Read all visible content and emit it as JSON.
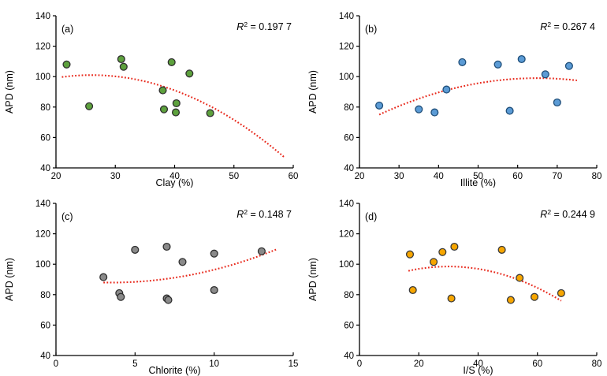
{
  "figure": {
    "background": "#ffffff",
    "axis_color": "#000000",
    "text_color": "#000000",
    "trend_color": "#E8291C"
  },
  "chart_data": [
    {
      "id": "a",
      "type": "scatter",
      "panel_label": "(a)",
      "r2_prefix": "R",
      "r2_exponent": "2",
      "r2_equals": " = ",
      "r2_value": "0.197 7",
      "xlabel": "Clay (%)",
      "ylabel": "APD (nm)",
      "xlim": [
        20,
        60
      ],
      "xticks": [
        20,
        30,
        40,
        50,
        60
      ],
      "ylim": [
        40,
        140
      ],
      "yticks": [
        40,
        60,
        80,
        100,
        120,
        140
      ],
      "grid": false,
      "marker": {
        "fill": "#5DA13D",
        "stroke": "#2F2F2F"
      },
      "points": [
        [
          21.8,
          108
        ],
        [
          25.6,
          80.5
        ],
        [
          31,
          111.5
        ],
        [
          31.4,
          106.5
        ],
        [
          38,
          91
        ],
        [
          38.2,
          78.5
        ],
        [
          39.5,
          109.5
        ],
        [
          40.3,
          82.5
        ],
        [
          40.2,
          76.5
        ],
        [
          42.5,
          102
        ],
        [
          46,
          76
        ]
      ],
      "trend": {
        "style": "dotted",
        "coeffs": [
          -0.0511,
          2.657,
          66.46
        ],
        "xrange": [
          21,
          58.5
        ]
      }
    },
    {
      "id": "b",
      "type": "scatter",
      "panel_label": "(b)",
      "r2_prefix": "R",
      "r2_exponent": "2",
      "r2_equals": " = ",
      "r2_value": "0.267 4",
      "xlabel": "Illite (%)",
      "ylabel": "APD (nm)",
      "xlim": [
        20,
        80
      ],
      "xticks": [
        20,
        30,
        40,
        50,
        60,
        70,
        80
      ],
      "ylim": [
        40,
        140
      ],
      "yticks": [
        40,
        60,
        80,
        100,
        120,
        140
      ],
      "grid": false,
      "marker": {
        "fill": "#5B9BD5",
        "stroke": "#1F4E79"
      },
      "points": [
        [
          25,
          81
        ],
        [
          35,
          78.5
        ],
        [
          39,
          76.5
        ],
        [
          42,
          91.5
        ],
        [
          46,
          109.5
        ],
        [
          55,
          108
        ],
        [
          58,
          77.5
        ],
        [
          61,
          111.5
        ],
        [
          67,
          101.5
        ],
        [
          70,
          83
        ],
        [
          73,
          107
        ]
      ],
      "trend": {
        "style": "dotted",
        "coeffs": [
          -0.015,
          1.95,
          35.625
        ],
        "xrange": [
          25,
          75
        ]
      }
    },
    {
      "id": "c",
      "type": "scatter",
      "panel_label": "(c)",
      "r2_prefix": "R",
      "r2_exponent": "2",
      "r2_equals": " = ",
      "r2_value": "0.148 7",
      "xlabel": "Chlorite (%)",
      "ylabel": "APD (nm)",
      "xlim": [
        0,
        15
      ],
      "xticks": [
        0,
        5,
        10,
        15
      ],
      "ylim": [
        40,
        140
      ],
      "yticks": [
        40,
        60,
        80,
        100,
        120,
        140
      ],
      "grid": false,
      "marker": {
        "fill": "#8A8A8A",
        "stroke": "#2F2F2F"
      },
      "points": [
        [
          3,
          91.5
        ],
        [
          4,
          81
        ],
        [
          4.1,
          78.5
        ],
        [
          5,
          109.5
        ],
        [
          7,
          111.5
        ],
        [
          7,
          77.5
        ],
        [
          7.1,
          76.5
        ],
        [
          8,
          101.5
        ],
        [
          10,
          107
        ],
        [
          10,
          83
        ],
        [
          13,
          108.5
        ]
      ],
      "trend": {
        "style": "dotted",
        "coeffs": [
          0.2,
          -1.4,
          90.4
        ],
        "xrange": [
          3,
          14
        ]
      }
    },
    {
      "id": "d",
      "type": "scatter",
      "panel_label": "(d)",
      "r2_prefix": "R",
      "r2_exponent": "2",
      "r2_equals": " = ",
      "r2_value": "0.244 9",
      "xlabel": "I/S (%)",
      "ylabel": "APD (nm)",
      "xlim": [
        0,
        80
      ],
      "xticks": [
        0,
        20,
        40,
        60,
        80
      ],
      "ylim": [
        40,
        140
      ],
      "yticks": [
        40,
        60,
        80,
        100,
        120,
        140
      ],
      "grid": false,
      "marker": {
        "fill": "#F7A600",
        "stroke": "#3A3A3A"
      },
      "points": [
        [
          17,
          106.5
        ],
        [
          18,
          83
        ],
        [
          25,
          101.5
        ],
        [
          28,
          108
        ],
        [
          31,
          77.5
        ],
        [
          32,
          111.5
        ],
        [
          48,
          109.5
        ],
        [
          51,
          76.5
        ],
        [
          54,
          91
        ],
        [
          59,
          78.5
        ],
        [
          68,
          81
        ]
      ],
      "trend": {
        "style": "dotted",
        "coeffs": [
          -0.0156,
          0.936,
          84.46
        ],
        "xrange": [
          16.5,
          68
        ]
      }
    }
  ]
}
